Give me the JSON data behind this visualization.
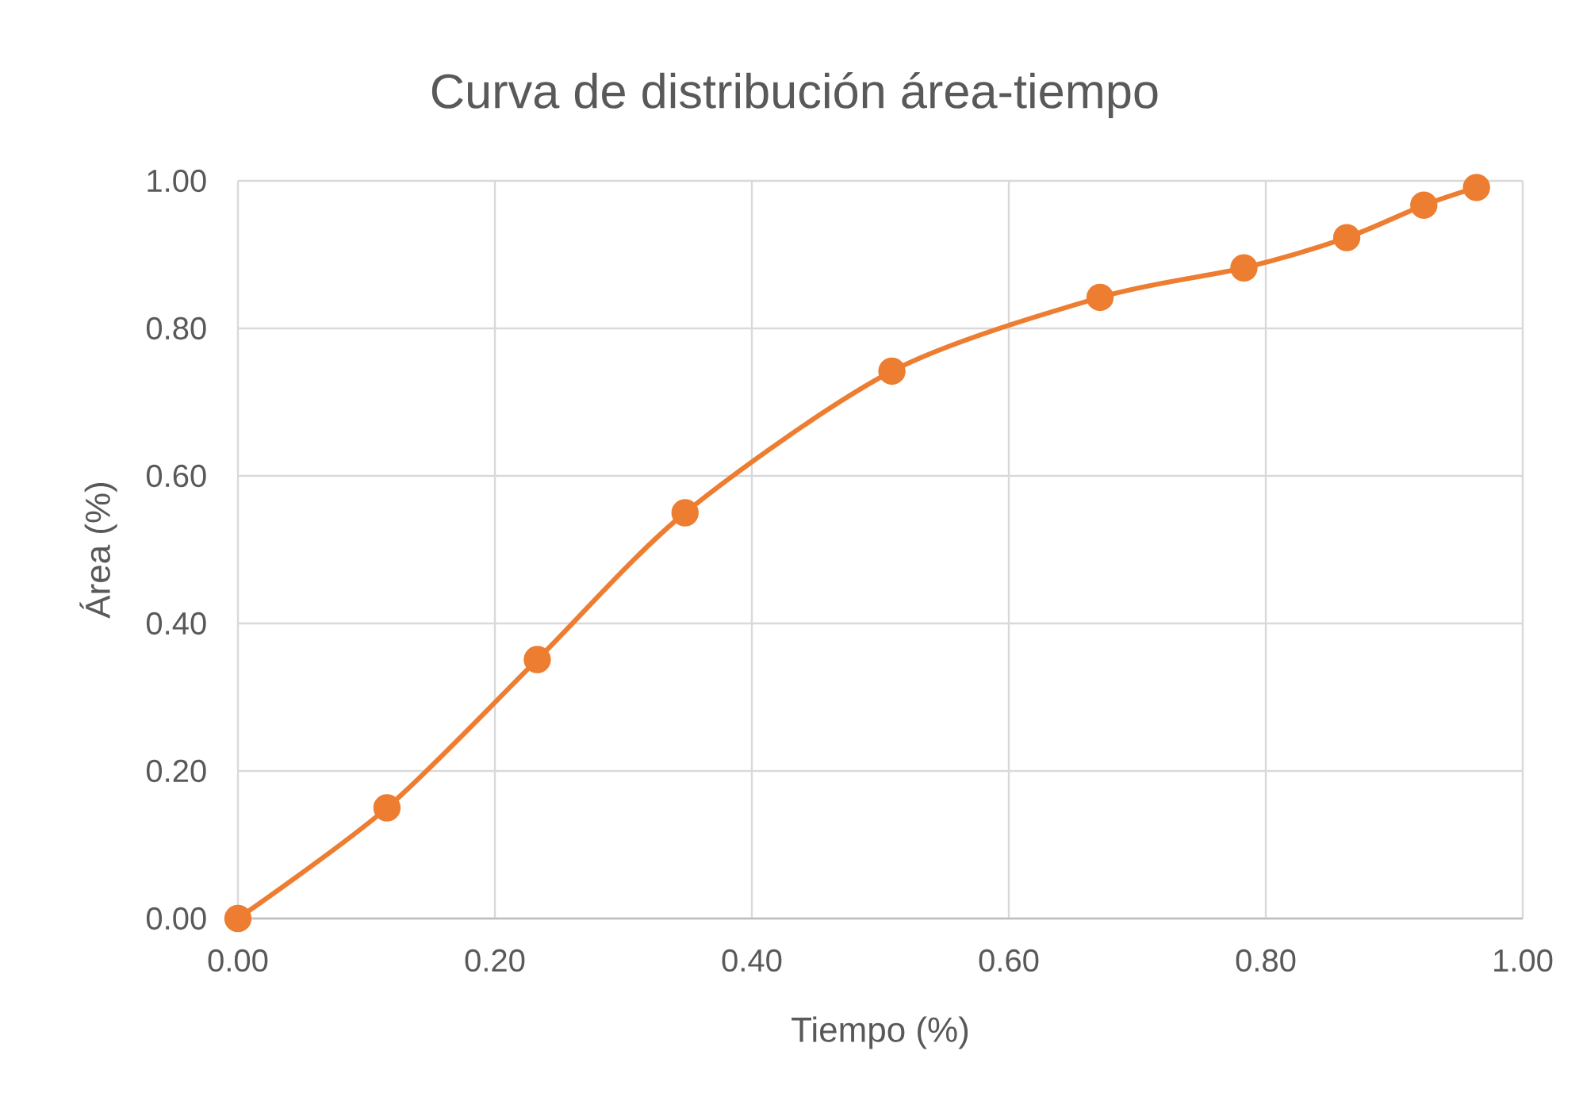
{
  "chart_data": {
    "type": "line",
    "title": "Curva de distribución área-tiempo",
    "xlabel": "Tiempo (%)",
    "ylabel": "Área (%)",
    "x": [
      0,
      0.116,
      0.233,
      0.348,
      0.509,
      0.671,
      0.783,
      0.863,
      0.923,
      0.964
    ],
    "values": [
      0,
      0.15,
      0.351,
      0.55,
      0.742,
      0.842,
      0.882,
      0.923,
      0.967,
      0.991
    ],
    "color": "#ed7d31",
    "marker": "circle",
    "line_style": "solid",
    "grid": true,
    "xlim": [
      0,
      1
    ],
    "ylim": [
      0,
      1
    ],
    "xticks": [
      {
        "value": 0,
        "label": "0.00"
      },
      {
        "value": 0.2,
        "label": "0.20"
      },
      {
        "value": 0.4,
        "label": "0.40"
      },
      {
        "value": 0.6,
        "label": "0.60"
      },
      {
        "value": 0.8,
        "label": "0.80"
      },
      {
        "value": 1,
        "label": "1.00"
      }
    ],
    "yticks": [
      {
        "value": 0,
        "label": "0.00"
      },
      {
        "value": 0.2,
        "label": "0.20"
      },
      {
        "value": 0.4,
        "label": "0.40"
      },
      {
        "value": 0.6,
        "label": "0.60"
      },
      {
        "value": 0.8,
        "label": "0.80"
      },
      {
        "value": 1,
        "label": "1.00"
      }
    ]
  }
}
